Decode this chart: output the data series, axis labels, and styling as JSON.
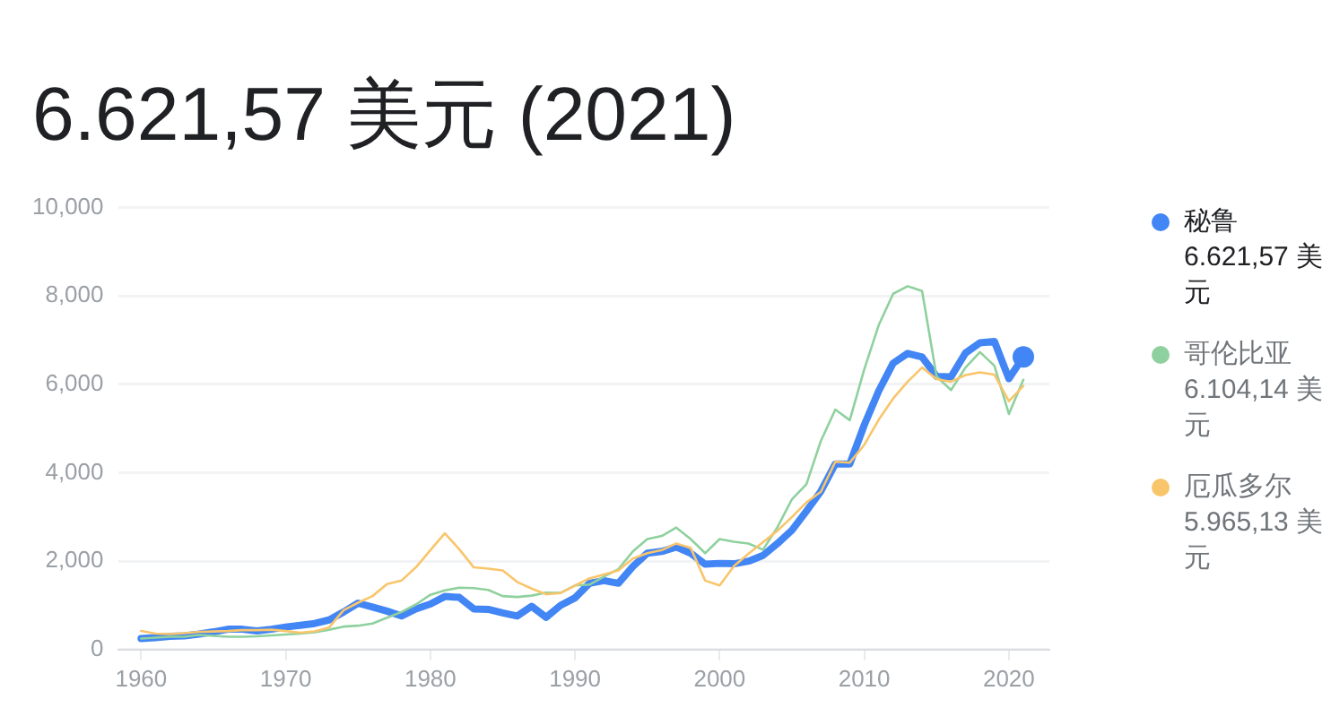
{
  "chart_data": {
    "type": "line",
    "title": "6.621,57 美元 (2021)",
    "x": [
      1960,
      1961,
      1962,
      1963,
      1964,
      1965,
      1966,
      1967,
      1968,
      1969,
      1970,
      1971,
      1972,
      1973,
      1974,
      1975,
      1976,
      1977,
      1978,
      1979,
      1980,
      1981,
      1982,
      1983,
      1984,
      1985,
      1986,
      1987,
      1988,
      1989,
      1990,
      1991,
      1992,
      1993,
      1994,
      1995,
      1996,
      1997,
      1998,
      1999,
      2000,
      2001,
      2002,
      2003,
      2004,
      2005,
      2006,
      2007,
      2008,
      2009,
      2010,
      2011,
      2012,
      2013,
      2014,
      2015,
      2016,
      2017,
      2018,
      2019,
      2020,
      2021
    ],
    "series": [
      {
        "name": "秘鲁",
        "color": "#4285f4",
        "values": [
          250,
          270,
          300,
          310,
          350,
          400,
          460,
          460,
          420,
          460,
          510,
          550,
          590,
          670,
          850,
          1050,
          960,
          870,
          760,
          920,
          1030,
          1200,
          1180,
          920,
          910,
          830,
          760,
          980,
          730,
          1000,
          1170,
          1500,
          1560,
          1500,
          1880,
          2180,
          2220,
          2320,
          2180,
          1930,
          1950,
          1940,
          2000,
          2130,
          2400,
          2700,
          3130,
          3580,
          4200,
          4200,
          5080,
          5850,
          6480,
          6700,
          6620,
          6180,
          6170,
          6710,
          6940,
          6970,
          6130,
          6621.57
        ]
      },
      {
        "name": "哥伦比亚",
        "color": "#8fd19e",
        "values": [
          250,
          270,
          290,
          290,
          330,
          310,
          290,
          290,
          300,
          320,
          340,
          360,
          390,
          450,
          520,
          540,
          590,
          720,
          850,
          1020,
          1240,
          1340,
          1400,
          1390,
          1350,
          1210,
          1190,
          1220,
          1290,
          1280,
          1450,
          1470,
          1650,
          1820,
          2220,
          2500,
          2570,
          2760,
          2500,
          2180,
          2500,
          2440,
          2400,
          2260,
          2770,
          3400,
          3740,
          4720,
          5430,
          5190,
          6340,
          7340,
          8050,
          8220,
          8110,
          6180,
          5870,
          6380,
          6730,
          6420,
          5330,
          6104.14
        ]
      },
      {
        "name": "厄瓜多尔",
        "color": "#f9c56b",
        "values": [
          420,
          360,
          350,
          370,
          400,
          410,
          420,
          440,
          440,
          450,
          420,
          380,
          410,
          500,
          890,
          1060,
          1210,
          1480,
          1560,
          1860,
          2250,
          2630,
          2270,
          1860,
          1830,
          1790,
          1530,
          1380,
          1250,
          1280,
          1450,
          1610,
          1700,
          1790,
          2060,
          2180,
          2250,
          2400,
          2300,
          1560,
          1450,
          1890,
          2170,
          2430,
          2690,
          3000,
          3330,
          3570,
          4250,
          4230,
          4630,
          5200,
          5680,
          6060,
          6380,
          6120,
          6060,
          6210,
          6270,
          6220,
          5620,
          5965.13
        ]
      }
    ],
    "annotations": [
      "6.621,57 美元",
      "6.104,14 美元",
      "5.965,13 美元"
    ],
    "xlim": [
      1958.4,
      2022.8
    ],
    "xticks": [
      1960,
      1970,
      1980,
      1990,
      2000,
      2010,
      2020
    ],
    "ylim": [
      0,
      10000
    ],
    "yticks": [
      0,
      {
        "value": 2000,
        "label": "2,000"
      },
      {
        "value": 4000,
        "label": "4,000"
      },
      {
        "value": 6000,
        "label": "6,000"
      },
      {
        "value": 8000,
        "label": "8,000"
      },
      {
        "value": 10000,
        "label": "10,000"
      }
    ],
    "grid": "y",
    "legend": "right",
    "marker": "none",
    "line_style": "solid"
  }
}
